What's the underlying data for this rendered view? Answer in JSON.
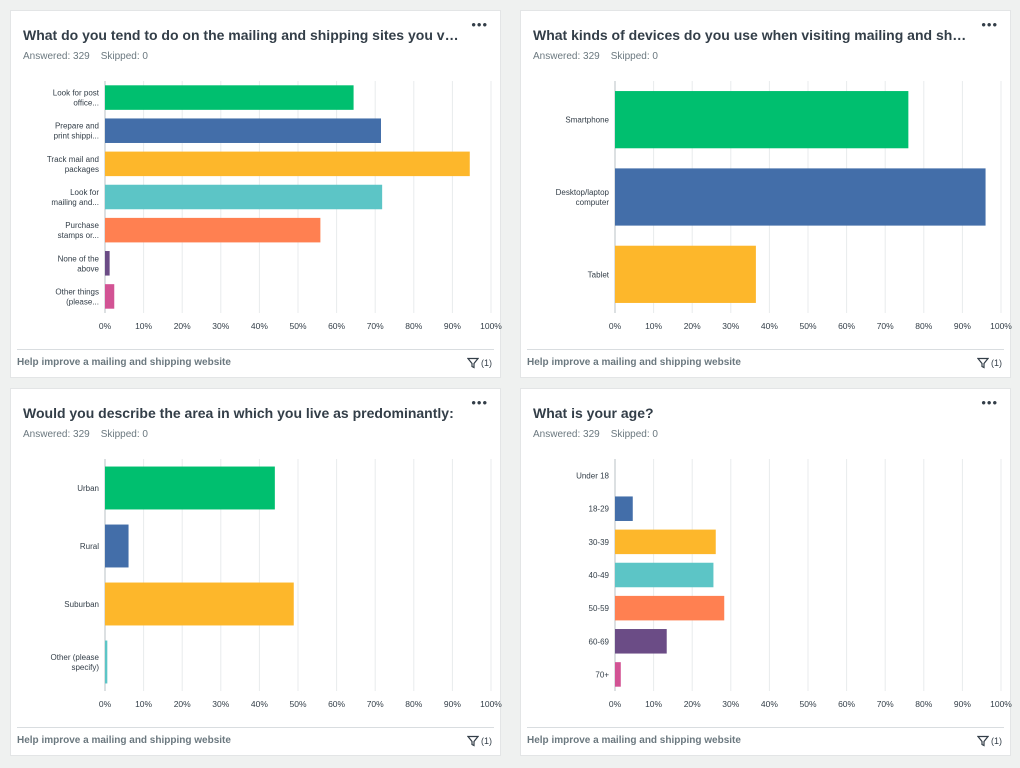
{
  "filter_icon": "filter-icon",
  "more_icon": "more-options-icon",
  "chart_data": [
    {
      "type": "bar",
      "orientation": "horizontal",
      "title": "What do you tend to do on the mailing and shipping sites you visit?",
      "answered": "Answered: 329",
      "skipped": "Skipped: 0",
      "categories": [
        [
          "Look for post",
          "office..."
        ],
        [
          "Prepare and",
          "print shippi..."
        ],
        [
          "Track mail and",
          "packages"
        ],
        [
          "Look for",
          "mailing and..."
        ],
        [
          "Purchase",
          "stamps or..."
        ],
        [
          "None of the",
          "above"
        ],
        [
          "Other things",
          "(please..."
        ]
      ],
      "values": [
        64.4,
        71.5,
        94.5,
        71.8,
        55.8,
        1.2,
        2.4
      ],
      "colors": [
        "#00bf6f",
        "#436ea9",
        "#fdb72b",
        "#5cc5c6",
        "#ff8051",
        "#6b4c86",
        "#d25394"
      ],
      "xlim": [
        0,
        100
      ],
      "ticks": [
        "0%",
        "10%",
        "20%",
        "30%",
        "40%",
        "50%",
        "60%",
        "70%",
        "80%",
        "90%",
        "100%"
      ],
      "grid": true,
      "footer": "Help improve a mailing and shipping website",
      "filter_count": "(1)"
    },
    {
      "type": "bar",
      "orientation": "horizontal",
      "title": "What kinds of devices do you use when visiting mailing and shipping ...",
      "answered": "Answered: 329",
      "skipped": "Skipped: 0",
      "categories": [
        [
          "Smartphone"
        ],
        [
          "Desktop/laptop",
          "computer"
        ],
        [
          "Tablet"
        ]
      ],
      "values": [
        76.0,
        96.0,
        36.5
      ],
      "colors": [
        "#00bf6f",
        "#436ea9",
        "#fdb72b"
      ],
      "xlim": [
        0,
        100
      ],
      "ticks": [
        "0%",
        "10%",
        "20%",
        "30%",
        "40%",
        "50%",
        "60%",
        "70%",
        "80%",
        "90%",
        "100%"
      ],
      "grid": true,
      "footer": "Help improve a mailing and shipping website",
      "filter_count": "(1)"
    },
    {
      "type": "bar",
      "orientation": "horizontal",
      "title": "Would you describe the area in which you live as predominantly:",
      "answered": "Answered: 329",
      "skipped": "Skipped: 0",
      "categories": [
        [
          "Urban"
        ],
        [
          "Rural"
        ],
        [
          "Suburban"
        ],
        [
          "Other (please",
          "specify)"
        ]
      ],
      "values": [
        44.0,
        6.1,
        48.9,
        0.6
      ],
      "colors": [
        "#00bf6f",
        "#436ea9",
        "#fdb72b",
        "#5cc5c6"
      ],
      "xlim": [
        0,
        100
      ],
      "ticks": [
        "0%",
        "10%",
        "20%",
        "30%",
        "40%",
        "50%",
        "60%",
        "70%",
        "80%",
        "90%",
        "100%"
      ],
      "grid": true,
      "footer": "Help improve a mailing and shipping website",
      "filter_count": "(1)"
    },
    {
      "type": "bar",
      "orientation": "horizontal",
      "title": "What is your age?",
      "answered": "Answered: 329",
      "skipped": "Skipped: 0",
      "categories": [
        [
          "Under 18"
        ],
        [
          "18-29"
        ],
        [
          "30-39"
        ],
        [
          "40-49"
        ],
        [
          "50-59"
        ],
        [
          "60-69"
        ],
        [
          "70+"
        ]
      ],
      "values": [
        0,
        4.6,
        26.1,
        25.5,
        28.3,
        13.4,
        1.5
      ],
      "colors": [
        "#00bf6f",
        "#436ea9",
        "#fdb72b",
        "#5cc5c6",
        "#ff8051",
        "#6b4c86",
        "#d25394"
      ],
      "xlim": [
        0,
        100
      ],
      "ticks": [
        "0%",
        "10%",
        "20%",
        "30%",
        "40%",
        "50%",
        "60%",
        "70%",
        "80%",
        "90%",
        "100%"
      ],
      "grid": true,
      "footer": "Help improve a mailing and shipping website",
      "filter_count": "(1)"
    }
  ]
}
